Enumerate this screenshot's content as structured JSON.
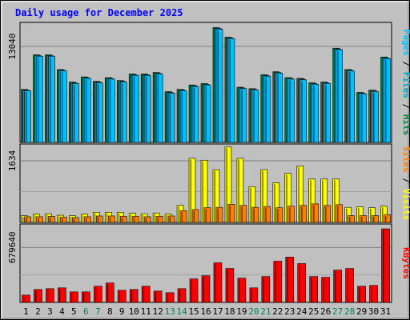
{
  "chart_data": {
    "type": "bar",
    "title": "Daily usage for December 2025",
    "categories": [
      "1",
      "2",
      "3",
      "4",
      "5",
      "6",
      "7",
      "8",
      "9",
      "10",
      "11",
      "12",
      "13",
      "14",
      "15",
      "16",
      "17",
      "18",
      "19",
      "20",
      "21",
      "22",
      "23",
      "24",
      "25",
      "26",
      "27",
      "28",
      "29",
      "30",
      "31"
    ],
    "weekend_categories": [
      "6",
      "7",
      "13",
      "14",
      "20",
      "21",
      "27",
      "28"
    ],
    "panels": [
      {
        "id": "hits-files-pages",
        "tick_label": "13040",
        "tick_value": 13040,
        "ylim": [
          0,
          16300
        ],
        "side_labels": [
          "Pages",
          "Files",
          "Hits"
        ],
        "series": [
          {
            "name": "Hits",
            "color": "#008040",
            "values": [
              7200,
              11900,
              11900,
              9900,
              8200,
              8900,
              8300,
              8800,
              8400,
              9300,
              9300,
              9500,
              6900,
              7200,
              7800,
              8000,
              15600,
              14300,
              7500,
              7300,
              9200,
              9600,
              8800,
              8700,
              8100,
              8200,
              12800,
              9900,
              6800,
              7100,
              11600
            ]
          },
          {
            "name": "Files",
            "color": "#00a0c0",
            "values": [
              7100,
              11800,
              11800,
              9800,
              8100,
              8800,
              8200,
              8700,
              8300,
              9200,
              9200,
              9400,
              6800,
              7100,
              7700,
              7900,
              15500,
              14200,
              7400,
              7200,
              9100,
              9500,
              8700,
              8600,
              8000,
              8100,
              12700,
              9800,
              6700,
              7000,
              11500
            ]
          },
          {
            "name": "Pages",
            "color": "#00c0ff",
            "values": [
              7000,
              11700,
              11700,
              9700,
              8000,
              8700,
              8100,
              8600,
              8200,
              9100,
              9100,
              9300,
              6700,
              7000,
              7600,
              7800,
              15400,
              14100,
              7300,
              7100,
              9000,
              9400,
              8600,
              8500,
              7900,
              8000,
              12600,
              9700,
              6600,
              6900,
              11400
            ]
          }
        ]
      },
      {
        "id": "visits-sites",
        "tick_label": "1634",
        "tick_value": 1634,
        "ylim": [
          0,
          2080
        ],
        "side_labels": [
          "Sites",
          "Visits"
        ],
        "series": [
          {
            "name": "Visits",
            "color": "#ffff00",
            "values": [
              180,
              220,
              230,
              190,
              180,
              220,
              270,
              270,
              270,
              240,
              230,
              250,
              220,
              450,
              1700,
              1650,
              1400,
              2000,
              1700,
              950,
              1400,
              1050,
              1300,
              1500,
              1150,
              1150,
              1150,
              400,
              410,
              390,
              430
            ]
          },
          {
            "name": "Sites",
            "color": "#ff8000",
            "values": [
              150,
              150,
              160,
              140,
              130,
              150,
              170,
              170,
              160,
              160,
              150,
              160,
              170,
              310,
              340,
              390,
              400,
              480,
              450,
              400,
              420,
              390,
              430,
              450,
              490,
              450,
              470,
              180,
              180,
              180,
              200
            ]
          }
        ]
      },
      {
        "id": "kbytes",
        "tick_label": "679640",
        "tick_value": 679640,
        "ylim": [
          0,
          970000
        ],
        "side_labels": [
          "KBytes"
        ],
        "series": [
          {
            "name": "KBytes",
            "color": "#ff0000",
            "values": [
              90000,
              160000,
              170000,
              180000,
              130000,
              130000,
              200000,
              240000,
              150000,
              160000,
              200000,
              140000,
              120000,
              170000,
              290000,
              330000,
              490000,
              420000,
              300000,
              180000,
              320000,
              510000,
              560000,
              480000,
              320000,
              310000,
              400000,
              420000,
              200000,
              210000,
              910000
            ]
          }
        ]
      }
    ]
  }
}
